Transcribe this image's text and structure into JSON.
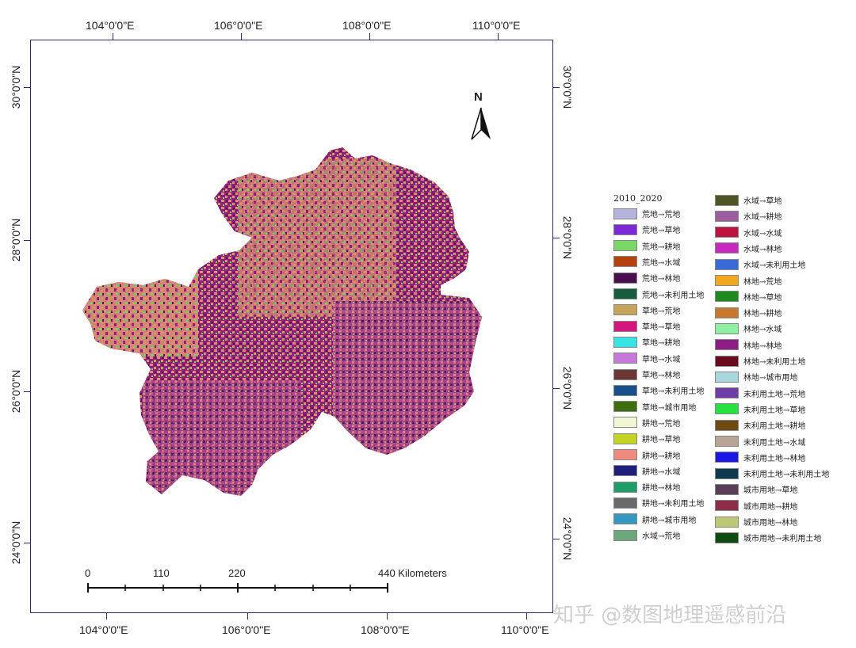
{
  "map": {
    "longitude_labels": [
      "104°0'0\"E",
      "106°0'0\"E",
      "108°0'0\"E",
      "110°0'0\"E"
    ],
    "latitude_labels": [
      "30°0'0\"N",
      "28°0'0\"N",
      "26°0'0\"N",
      "24°0'0\"N"
    ],
    "north_arrow": {
      "letter": "N",
      "icon": "north-arrow-icon"
    },
    "scale_bar": {
      "labels": [
        "0",
        "110",
        "220",
        "440 Kilometers"
      ]
    },
    "region_colors": [
      "#8e1d7c",
      "#e08a78",
      "#c9a25a",
      "#7ad26b",
      "#4a1750",
      "#b04090"
    ]
  },
  "legend": {
    "title": "2010_2020",
    "items": [
      {
        "label": "荒地→荒地",
        "color": "#b3b3dd"
      },
      {
        "label": "荒地→草地",
        "color": "#7c2ad8"
      },
      {
        "label": "荒地→耕地",
        "color": "#7ad868"
      },
      {
        "label": "荒地→水域",
        "color": "#b5410f"
      },
      {
        "label": "荒地→林地",
        "color": "#4b0f4f"
      },
      {
        "label": "荒地→未利用土地",
        "color": "#165c3e"
      },
      {
        "label": "草地→荒地",
        "color": "#c8a35a"
      },
      {
        "label": "草地→草地",
        "color": "#d4177e"
      },
      {
        "label": "草地→耕地",
        "color": "#38e4e4"
      },
      {
        "label": "草地→水域",
        "color": "#c679d8"
      },
      {
        "label": "草地→林地",
        "color": "#6e3535"
      },
      {
        "label": "草地→未利用土地",
        "color": "#17508d"
      },
      {
        "label": "草地→城市用地",
        "color": "#3e6e12"
      },
      {
        "label": "耕地→荒地",
        "color": "#f2f6d4"
      },
      {
        "label": "耕地→草地",
        "color": "#c4d424"
      },
      {
        "label": "耕地→耕地",
        "color": "#ee8a80"
      },
      {
        "label": "耕地→水域",
        "color": "#1e1e7c"
      },
      {
        "label": "耕地→林地",
        "color": "#1f9e6a"
      },
      {
        "label": "耕地→未利用土地",
        "color": "#6a6a6a"
      },
      {
        "label": "耕地→城市用地",
        "color": "#3498c0"
      },
      {
        "label": "水域→荒地",
        "color": "#6ea87a"
      },
      {
        "label": "水域→草地",
        "color": "#4f5424"
      },
      {
        "label": "水域→耕地",
        "color": "#9c5e9e"
      },
      {
        "label": "水域→水域",
        "color": "#be1240"
      },
      {
        "label": "水域→林地",
        "color": "#c828c0"
      },
      {
        "label": "水域→未利用土地",
        "color": "#3a6ad8"
      },
      {
        "label": "林地→荒地",
        "color": "#f2a81e"
      },
      {
        "label": "林地→草地",
        "color": "#1e8a1e"
      },
      {
        "label": "林地→耕地",
        "color": "#c8782e"
      },
      {
        "label": "林地→水域",
        "color": "#8ef0a0"
      },
      {
        "label": "林地→林地",
        "color": "#8e1d88"
      },
      {
        "label": "林地→未利用土地",
        "color": "#6a0a1e"
      },
      {
        "label": "林地→城市用地",
        "color": "#a8d8de"
      },
      {
        "label": "未利用土地→荒地",
        "color": "#6e3ea4"
      },
      {
        "label": "未利用土地→草地",
        "color": "#28e040"
      },
      {
        "label": "未利用土地→耕地",
        "color": "#6e4a10"
      },
      {
        "label": "未利用土地→水域",
        "color": "#b8a494"
      },
      {
        "label": "未利用土地→林地",
        "color": "#1a16e8"
      },
      {
        "label": "未利用土地→未利用土地",
        "color": "#0e3a50"
      },
      {
        "label": "城市用地→草地",
        "color": "#5a3e58"
      },
      {
        "label": "城市用地→耕地",
        "color": "#8c2e4a"
      },
      {
        "label": "城市用地→林地",
        "color": "#bcc874"
      },
      {
        "label": "城市用地→未利用土地",
        "color": "#0e4a12"
      }
    ]
  },
  "watermark": "知乎 @数图地理遥感前沿"
}
